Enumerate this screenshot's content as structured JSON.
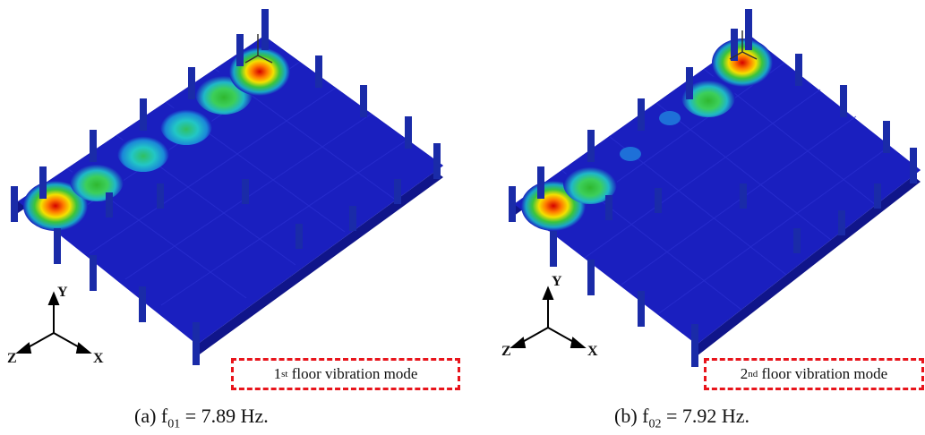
{
  "panels": [
    {
      "caption_prefix": "(a) f",
      "caption_sub": "01",
      "caption_suffix": " = 7.89 Hz.",
      "mode_ordinal": "1",
      "mode_sup": "st",
      "mode_text": " floor vibration mode",
      "axes": {
        "y": "Y",
        "z": "Z",
        "x": "X"
      }
    },
    {
      "caption_prefix": "(b) f",
      "caption_sub": "02",
      "caption_suffix": " = 7.92 Hz.",
      "mode_ordinal": "2",
      "mode_sup": "nd",
      "mode_text": " floor vibration mode",
      "axes": {
        "y": "Y",
        "z": "Z",
        "x": "X"
      }
    }
  ],
  "colors": {
    "slab": "#1a1fbf",
    "slab_dark": "#10158a",
    "column": "#1a2ba8",
    "dash_box": "#e8141b"
  }
}
